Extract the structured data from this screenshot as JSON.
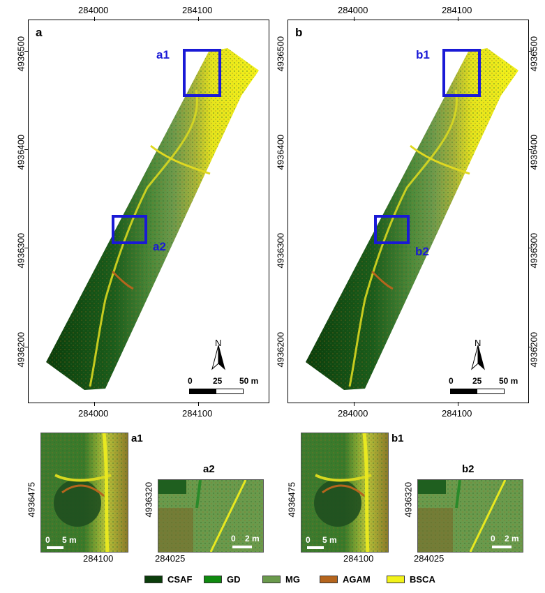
{
  "panels": {
    "a": {
      "letter": "a",
      "box1": "a1",
      "box2": "a2"
    },
    "b": {
      "letter": "b",
      "box1": "b1",
      "box2": "b2"
    }
  },
  "axes": {
    "x_ticks": [
      "284000",
      "284100"
    ],
    "y_ticks": [
      "4936500",
      "4936400",
      "4936300",
      "4936200"
    ]
  },
  "scale_bar": {
    "n0": "0",
    "n1": "25",
    "n2": "50 m"
  },
  "north": "N",
  "insets": {
    "a1": {
      "title": "a1",
      "y": "4936475",
      "x": "284100",
      "scale0": "0",
      "scale1": "5 m"
    },
    "a2": {
      "title": "a2",
      "y": "4936320",
      "x": "284025",
      "scale0": "0",
      "scale1": "2 m"
    },
    "b1": {
      "title": "b1",
      "y": "4936475",
      "x": "284100",
      "scale0": "0",
      "scale1": "5 m"
    },
    "b2": {
      "title": "b2",
      "y": "4936320",
      "x": "284025",
      "scale0": "0",
      "scale1": "2 m"
    }
  },
  "legend": [
    {
      "label": "CSAF",
      "color": "#0b3d0b"
    },
    {
      "label": "GD",
      "color": "#0f8a0f"
    },
    {
      "label": "MG",
      "color": "#6a9a4c"
    },
    {
      "label": "AGAM",
      "color": "#b5651d"
    },
    {
      "label": "BSCA",
      "color": "#f2f21a"
    }
  ]
}
